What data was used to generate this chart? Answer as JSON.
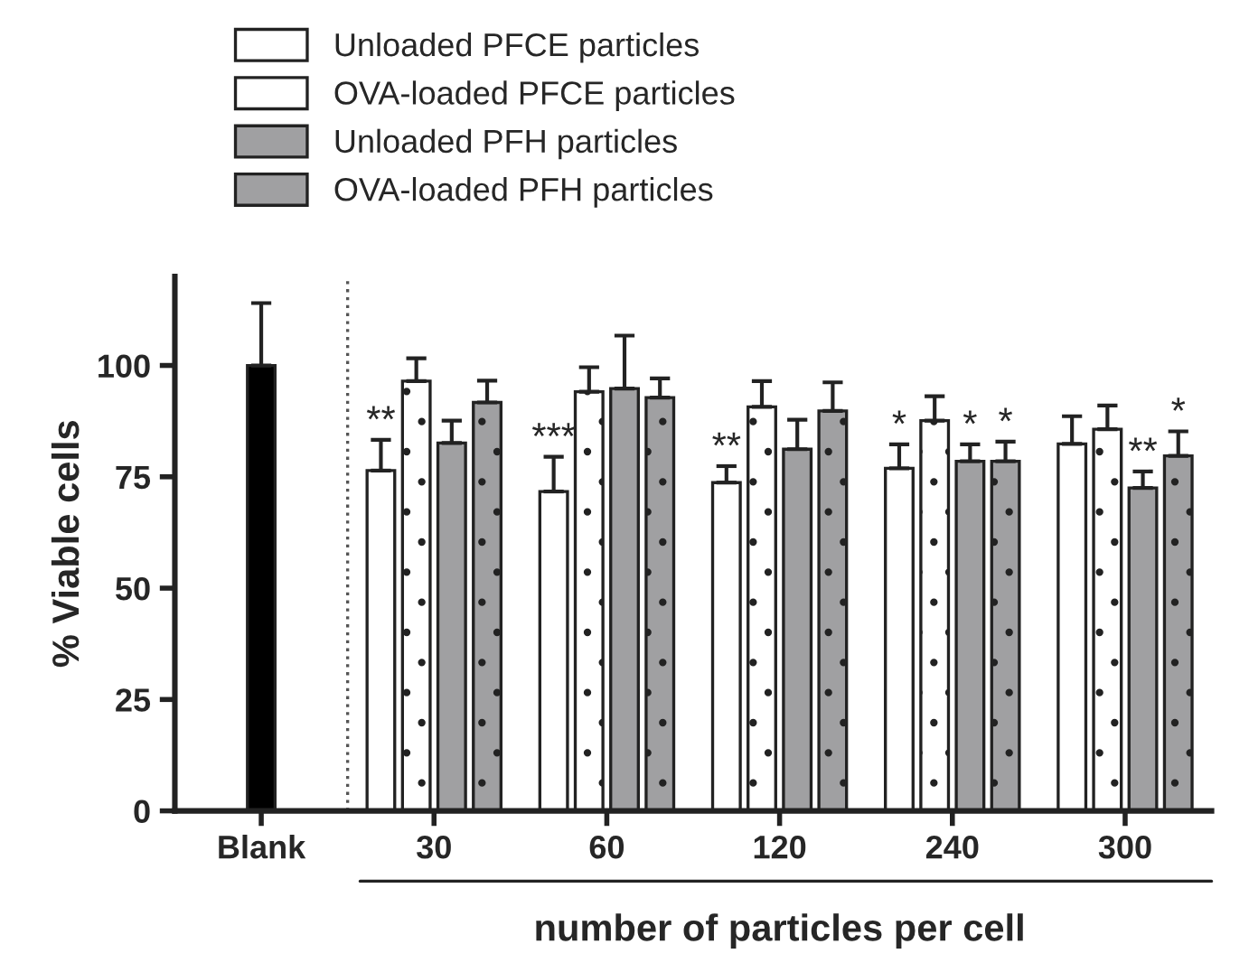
{
  "chart_data": {
    "type": "bar",
    "xlabel": "number of particles per cell",
    "ylabel": "% Viable cells",
    "categories": [
      "Blank",
      "30",
      "60",
      "120",
      "240",
      "300"
    ],
    "series": [
      {
        "color": "#000000",
        "values": [
          100,
          null,
          null,
          null,
          null,
          null
        ],
        "errors": [
          14,
          null,
          null,
          null,
          null,
          null
        ]
      },
      {
        "name": "Unloaded PFCE particles",
        "color": "#ffffff",
        "values": [
          null,
          76.4,
          71.7,
          73.7,
          76.9,
          82.4
        ],
        "errors": [
          null,
          6.9,
          7.8,
          3.7,
          5.4,
          6.2
        ]
      },
      {
        "name": "OVA-loaded PFCE particles",
        "color": "#ffffff",
        "values": [
          null,
          96.5,
          94.1,
          90.7,
          87.6,
          85.7
        ],
        "errors": [
          null,
          5.1,
          5.5,
          5.8,
          5.5,
          5.3
        ]
      },
      {
        "name": "Unloaded PFH particles",
        "color": "#a0a0a2",
        "values": [
          null,
          82.6,
          94.8,
          81.2,
          78.5,
          72.5
        ],
        "errors": [
          null,
          5.0,
          11.9,
          6.6,
          3.8,
          3.7
        ]
      },
      {
        "name": "OVA-loaded PFH particles",
        "color": "#a0a0a2",
        "values": [
          null,
          91.7,
          92.8,
          89.8,
          78.5,
          79.7
        ],
        "errors": [
          null,
          4.9,
          4.3,
          6.4,
          4.4,
          5.5
        ]
      }
    ],
    "annotations": [
      {
        "text": "**",
        "x": "30",
        "y": 83.3
      },
      {
        "text": "***",
        "x": "60",
        "y": 79.5
      },
      {
        "text": "**",
        "x": "120",
        "y": 77.4
      },
      {
        "text": "*",
        "x": "240",
        "y": 82.3
      },
      {
        "text": "*",
        "x": "240",
        "y": 82.3
      },
      {
        "text": "*",
        "x": "240",
        "y": 82.9
      },
      {
        "text": "**",
        "x": "300",
        "y": 76.2
      },
      {
        "text": "*",
        "x": "300",
        "y": 85.2
      }
    ],
    "ylim": [
      0,
      120
    ],
    "yticks": [
      0,
      25,
      50,
      75,
      100
    ],
    "legend": "top left",
    "grid": false
  }
}
